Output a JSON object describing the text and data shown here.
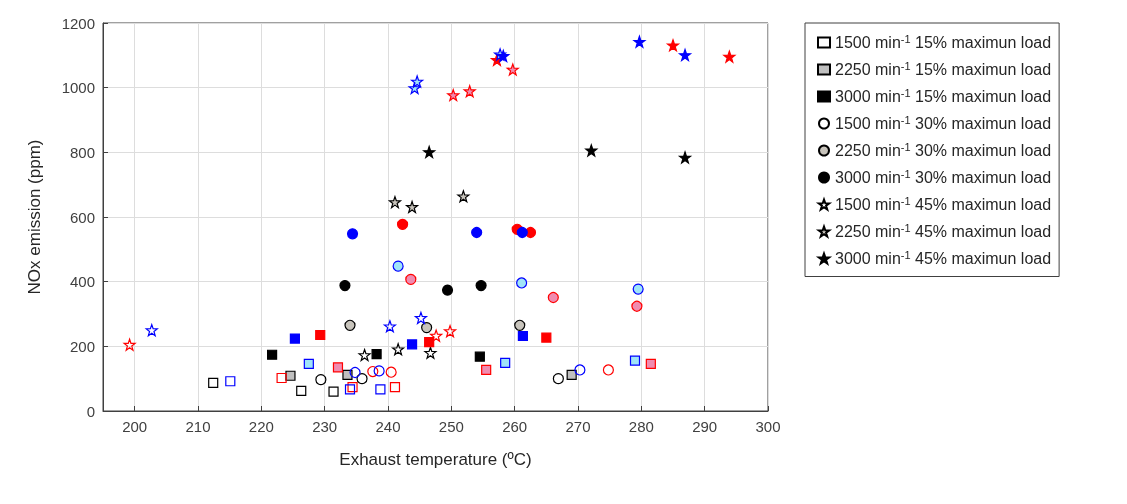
{
  "chart_data": {
    "type": "scatter",
    "xlabel": "Exhaust temperature (ºC)",
    "ylabel": "NOx emission (ppm)",
    "xlim": [
      195,
      300
    ],
    "xticks": [
      200,
      210,
      220,
      230,
      240,
      250,
      260,
      270,
      280,
      290,
      300
    ],
    "ylim": [
      0,
      1200
    ],
    "yticks": [
      0,
      200,
      400,
      600,
      800,
      1000,
      1200
    ],
    "grid": true,
    "legend": "right",
    "series": [
      {
        "name": "1500 min$^{-1}$ 15% maximun load",
        "color": "#000000",
        "colors": [
          null,
          null,
          null
        ],
        "marker": "square",
        "x": [
          212.4,
          226.3,
          231.4
        ],
        "values": [
          87,
          62,
          60
        ]
      },
      {
        "name": "2250 min$^{-1}$ 15% maximun load",
        "color": "#000000",
        "colors": [
          "#bfbfbf",
          "#bfbfbf",
          "#bfbfbf"
        ],
        "marker": "square",
        "x": [
          224.6,
          233.6,
          269.0
        ],
        "values": [
          109,
          112,
          112
        ]
      },
      {
        "name": "3000 min$^{-1}$ 15% maximun load",
        "color": "#000000",
        "colors": [
          "#000000",
          "#000000",
          "#000000"
        ],
        "marker": "square",
        "x": [
          221.7,
          238.2,
          254.5
        ],
        "values": [
          174,
          176,
          168
        ]
      },
      {
        "name": "1500 min$^{-1}$ 30% maximun load",
        "color": "#000000",
        "colors": [
          null,
          null,
          null
        ],
        "marker": "circle",
        "x": [
          229.4,
          235.9,
          266.9
        ],
        "values": [
          97,
          100,
          100
        ]
      },
      {
        "name": "2250 min$^{-1}$ 30% maximun load",
        "color": "#000000",
        "colors": [
          "#c8c4bc",
          "#c8c4bc",
          "#c8c4bc"
        ],
        "marker": "circle",
        "x": [
          234.0,
          246.1,
          260.8
        ],
        "values": [
          265,
          258,
          265
        ]
      },
      {
        "name": "3000 min$^{-1}$ 30% maximun load",
        "color": "#000000",
        "colors": [
          "#000000",
          "#000000",
          "#000000"
        ],
        "marker": "circle",
        "x": [
          233.2,
          249.4,
          254.7
        ],
        "values": [
          388,
          374,
          388
        ]
      },
      {
        "name": "1500 min$^{-1}$ 45% maximun load",
        "color": "#000000",
        "colors": [
          null,
          null,
          null
        ],
        "marker": "star",
        "x": [
          236.3,
          241.6,
          246.7
        ],
        "values": [
          173,
          191,
          180
        ]
      },
      {
        "name": "2250 min$^{-1}$ 45% maximun load",
        "color": "#000000",
        "colors": [
          "#c8c4bc",
          "#c8c4bc",
          "#c8c4bc"
        ],
        "marker": "star",
        "x": [
          241.1,
          243.8,
          251.9
        ],
        "values": [
          646,
          631,
          664
        ]
      },
      {
        "name": "3000 min$^{-1}$ 45% maximun load",
        "color": "#000000",
        "colors": [
          "#000000",
          "#000000",
          "#000000"
        ],
        "marker": "star",
        "x": [
          246.5,
          272.1,
          286.9
        ],
        "values": [
          801,
          806,
          784
        ]
      },
      {
        "color": "#ff0000",
        "colors": [
          null,
          null,
          null
        ],
        "marker": "square",
        "x": [
          223.2,
          234.4,
          241.1
        ],
        "values": [
          102,
          74,
          74
        ]
      },
      {
        "color": "#ff0000",
        "colors": [
          "#f08cb0",
          "#f08cb0",
          "#f08cb0"
        ],
        "marker": "square",
        "x": [
          232.1,
          255.5,
          281.5
        ],
        "values": [
          135,
          127,
          146
        ]
      },
      {
        "color": "#ff0000",
        "colors": [
          "#ff0000",
          "#ff0000",
          "#ff0000"
        ],
        "marker": "square",
        "x": [
          229.3,
          246.5,
          265.0
        ],
        "values": [
          235,
          213,
          227
        ]
      },
      {
        "color": "#ff0000",
        "colors": [
          null,
          null,
          null
        ],
        "marker": "circle",
        "x": [
          237.6,
          240.5,
          274.8
        ],
        "values": [
          122,
          120,
          127
        ]
      },
      {
        "color": "#ff0000",
        "colors": [
          "#f08cb0",
          "#f08cb0",
          "#f08cb0"
        ],
        "marker": "circle",
        "x": [
          243.6,
          266.1,
          279.3
        ],
        "values": [
          407,
          351,
          324
        ]
      },
      {
        "color": "#ff0000",
        "colors": [
          "#ff0000",
          "#ff0000",
          "#ff0000"
        ],
        "marker": "circle",
        "x": [
          242.3,
          260.4,
          262.5
        ],
        "values": [
          577,
          562,
          552
        ]
      },
      {
        "color": "#ff0000",
        "colors": [
          null,
          null,
          null
        ],
        "marker": "star",
        "x": [
          199.2,
          247.6,
          249.8
        ],
        "values": [
          205,
          233,
          247
        ]
      },
      {
        "color": "#ff0000",
        "colors": [
          "#f08cb0",
          "#f08cb0",
          "#f08cb0"
        ],
        "marker": "star",
        "x": [
          250.3,
          252.9,
          259.7
        ],
        "values": [
          977,
          989,
          1056
        ]
      },
      {
        "color": "#ff0000",
        "colors": [
          "#ff0000",
          "#ff0000",
          "#ff0000"
        ],
        "marker": "star",
        "x": [
          257.2,
          285.0,
          293.9
        ],
        "values": [
          1086,
          1131,
          1096
        ]
      },
      {
        "color": "#0000ff",
        "colors": [
          null,
          null,
          null
        ],
        "marker": "square",
        "x": [
          215.1,
          234.0,
          238.8
        ],
        "values": [
          92,
          67,
          67
        ]
      },
      {
        "color": "#0000ff",
        "colors": [
          "#a0e4f8",
          "#a0e4f8",
          "#a0e4f8"
        ],
        "marker": "square",
        "x": [
          227.5,
          258.5,
          279.0
        ],
        "values": [
          146,
          149,
          156
        ]
      },
      {
        "color": "#0000ff",
        "colors": [
          "#0000ff",
          "#0000ff",
          "#0000ff"
        ],
        "marker": "square",
        "x": [
          225.3,
          243.8,
          261.3
        ],
        "values": [
          224,
          206,
          232
        ]
      },
      {
        "color": "#0000ff",
        "colors": [
          null,
          null,
          null
        ],
        "marker": "circle",
        "x": [
          234.8,
          238.6,
          270.3
        ],
        "values": [
          119,
          124,
          127
        ]
      },
      {
        "color": "#0000ff",
        "colors": [
          "#a0e4f8",
          "#a0e4f8",
          "#a0e4f8"
        ],
        "marker": "circle",
        "x": [
          241.6,
          261.1,
          279.5
        ],
        "values": [
          448,
          396,
          377
        ]
      },
      {
        "color": "#0000ff",
        "colors": [
          "#0000ff",
          "#0000ff",
          "#0000ff"
        ],
        "marker": "circle",
        "x": [
          234.4,
          254.0,
          261.2
        ],
        "values": [
          548,
          552,
          552
        ]
      },
      {
        "color": "#0000ff",
        "colors": [
          null,
          null,
          null
        ],
        "marker": "star",
        "x": [
          202.7,
          240.3,
          245.2
        ],
        "values": [
          250,
          262,
          288
        ]
      },
      {
        "color": "#0000ff",
        "colors": [
          "#a0e4f8",
          "#a0e4f8",
          "#a0e4f8"
        ],
        "marker": "star",
        "x": [
          244.2,
          244.6,
          257.7
        ],
        "values": [
          999,
          1019,
          1103
        ]
      },
      {
        "color": "#0000ff",
        "colors": [
          "#0000ff",
          "#0000ff",
          "#0000ff"
        ],
        "marker": "star",
        "x": [
          258.2,
          279.7,
          286.9
        ],
        "values": [
          1098,
          1142,
          1101
        ]
      }
    ]
  }
}
